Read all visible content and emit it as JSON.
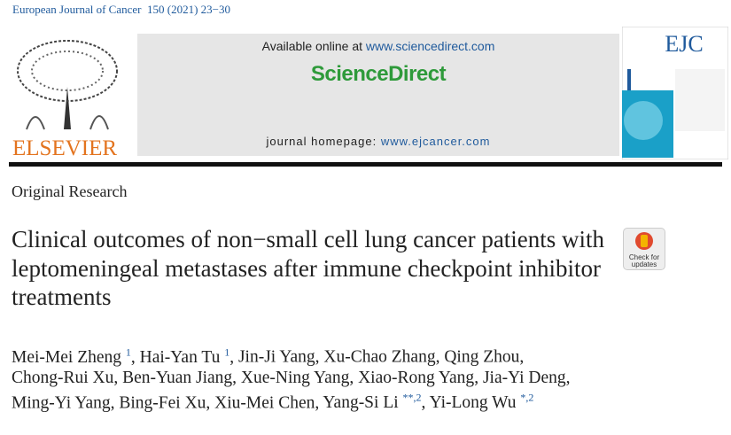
{
  "header": {
    "journal": "European Journal of Cancer",
    "citation": "150 (2021) 23−30",
    "publisher": "ELSEVIER",
    "available_online": "Available online at",
    "sciencedirect_url": "www.sciencedirect.com",
    "platform": "ScienceDirect",
    "homepage_label": "journal homepage:",
    "homepage_url": "www.ejcancer.com",
    "cover_title": "EJC"
  },
  "article": {
    "section": "Original Research",
    "title": "Clinical outcomes of non−small cell lung cancer patients with leptomeningeal metastases after immune checkpoint inhibitor treatments",
    "badge": [
      "Check for",
      "updates"
    ],
    "authors": [
      {
        "name": "Mei-Mei Zheng",
        "sup": "1",
        "separator": ","
      },
      {
        "name": "Hai-Yan Tu",
        "sup": "1",
        "separator": ","
      },
      {
        "name": "Jin-Ji Yang",
        "separator": ","
      },
      {
        "name": "Xu-Chao Zhang",
        "separator": ","
      },
      {
        "name": "Qing Zhou",
        "separator": ","
      },
      {
        "name": "Chong-Rui Xu",
        "separator": ","
      },
      {
        "name": "Ben-Yuan Jiang",
        "separator": ","
      },
      {
        "name": "Xue-Ning Yang",
        "separator": ","
      },
      {
        "name": "Xiao-Rong Yang",
        "separator": ","
      },
      {
        "name": "Jia-Yi Deng",
        "separator": ","
      },
      {
        "name": "Ming-Yi Yang",
        "separator": ","
      },
      {
        "name": "Bing-Fei Xu",
        "separator": ","
      },
      {
        "name": "Xiu-Mei Chen",
        "separator": ","
      },
      {
        "name": "Yang-Si Li",
        "sup": "**,2",
        "separator": ","
      },
      {
        "name": "Yi-Long Wu",
        "sup": "*,2"
      }
    ]
  }
}
